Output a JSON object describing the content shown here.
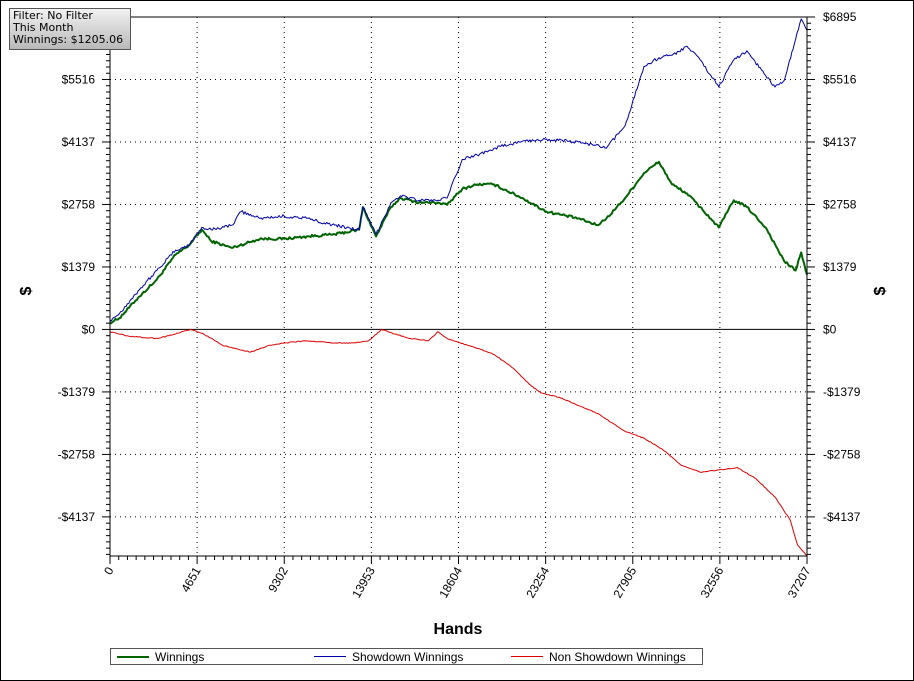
{
  "filter": {
    "line1": "Filter: No Filter",
    "line2": "This Month",
    "line3": "Winnings: $1205.06"
  },
  "chart_data": {
    "type": "line",
    "xlabel": "Hands",
    "ylabel": "$",
    "xlim": [
      0,
      37207
    ],
    "ylim": [
      -5000,
      6895
    ],
    "grid": true,
    "legend_position": "bottom",
    "x_ticks": [
      "0",
      "4651",
      "9302",
      "13953",
      "18604",
      "23254",
      "27905",
      "32556",
      "37207"
    ],
    "y_ticks": [
      {
        "value": 6895,
        "label": "$6895"
      },
      {
        "value": 5516,
        "label": "$5516"
      },
      {
        "value": 4137,
        "label": "$4137"
      },
      {
        "value": 2758,
        "label": "$2758"
      },
      {
        "value": 1379,
        "label": "$1379"
      },
      {
        "value": 0,
        "label": "$0"
      },
      {
        "value": -1379,
        "label": "-$1379"
      },
      {
        "value": -2758,
        "label": "-$2758"
      },
      {
        "value": -4137,
        "label": "-$4137"
      }
    ],
    "series": [
      {
        "name": "Winnings",
        "color": "#006400",
        "x": [
          0,
          500,
          1500,
          2500,
          3500,
          4200,
          4900,
          5400,
          6500,
          8000,
          9300,
          10500,
          12000,
          13300,
          13500,
          14200,
          15000,
          15500,
          16500,
          17500,
          18000,
          18800,
          19600,
          20500,
          22000,
          23300,
          25000,
          26000,
          26500,
          27500,
          28500,
          29300,
          30000,
          30800,
          31500,
          32500,
          33300,
          34000,
          35000,
          36000,
          36600,
          36900,
          37207
        ],
        "y": [
          150,
          250,
          700,
          1100,
          1650,
          1850,
          2200,
          1950,
          1800,
          2000,
          2000,
          2050,
          2100,
          2200,
          2700,
          2050,
          2700,
          2900,
          2800,
          2800,
          2750,
          3100,
          3200,
          3200,
          2900,
          2600,
          2450,
          2300,
          2450,
          2900,
          3450,
          3700,
          3200,
          3000,
          2700,
          2250,
          2850,
          2700,
          2250,
          1500,
          1300,
          1700,
          1205
        ]
      },
      {
        "name": "Showdown Winnings",
        "color": "#0000aa",
        "x": [
          0,
          500,
          1500,
          2500,
          3500,
          4200,
          4900,
          5400,
          6500,
          7000,
          8000,
          9300,
          10500,
          12000,
          13300,
          13500,
          14200,
          15000,
          15500,
          16500,
          17500,
          18000,
          18800,
          19600,
          20500,
          22000,
          23300,
          24500,
          25500,
          26500,
          27500,
          28500,
          29300,
          30000,
          30800,
          31500,
          32500,
          33300,
          34000,
          35000,
          35500,
          36000,
          36600,
          36900,
          37207
        ],
        "y": [
          200,
          350,
          850,
          1300,
          1750,
          1850,
          2250,
          2200,
          2300,
          2600,
          2450,
          2500,
          2450,
          2300,
          2200,
          2700,
          2100,
          2800,
          2950,
          2850,
          2850,
          2900,
          3750,
          3850,
          4000,
          4150,
          4200,
          4150,
          4100,
          4000,
          4500,
          5800,
          6000,
          6050,
          6250,
          5950,
          5350,
          5950,
          6150,
          5600,
          5350,
          5500,
          6400,
          6850,
          6600
        ]
      },
      {
        "name": "Non Showdown Winnings",
        "color": "#dd0000",
        "x": [
          0,
          1000,
          2500,
          3500,
          4300,
          5000,
          6000,
          7500,
          8500,
          9300,
          10500,
          12000,
          13000,
          13800,
          14500,
          15200,
          16000,
          17000,
          17500,
          18000,
          18700,
          19500,
          20500,
          21500,
          22500,
          23000,
          24000,
          26000,
          27500,
          28500,
          29500,
          30500,
          31500,
          32500,
          33500,
          34500,
          35500,
          36300,
          36700,
          37000,
          37207
        ],
        "y": [
          -50,
          -150,
          -200,
          -100,
          0,
          -100,
          -350,
          -500,
          -350,
          -300,
          -250,
          -300,
          -300,
          -250,
          0,
          -100,
          -200,
          -250,
          -50,
          -200,
          -300,
          -400,
          -550,
          -850,
          -1250,
          -1400,
          -1500,
          -1850,
          -2250,
          -2400,
          -2650,
          -3000,
          -3150,
          -3100,
          -3050,
          -3300,
          -3700,
          -4200,
          -4750,
          -4900,
          -5000
        ]
      }
    ]
  }
}
